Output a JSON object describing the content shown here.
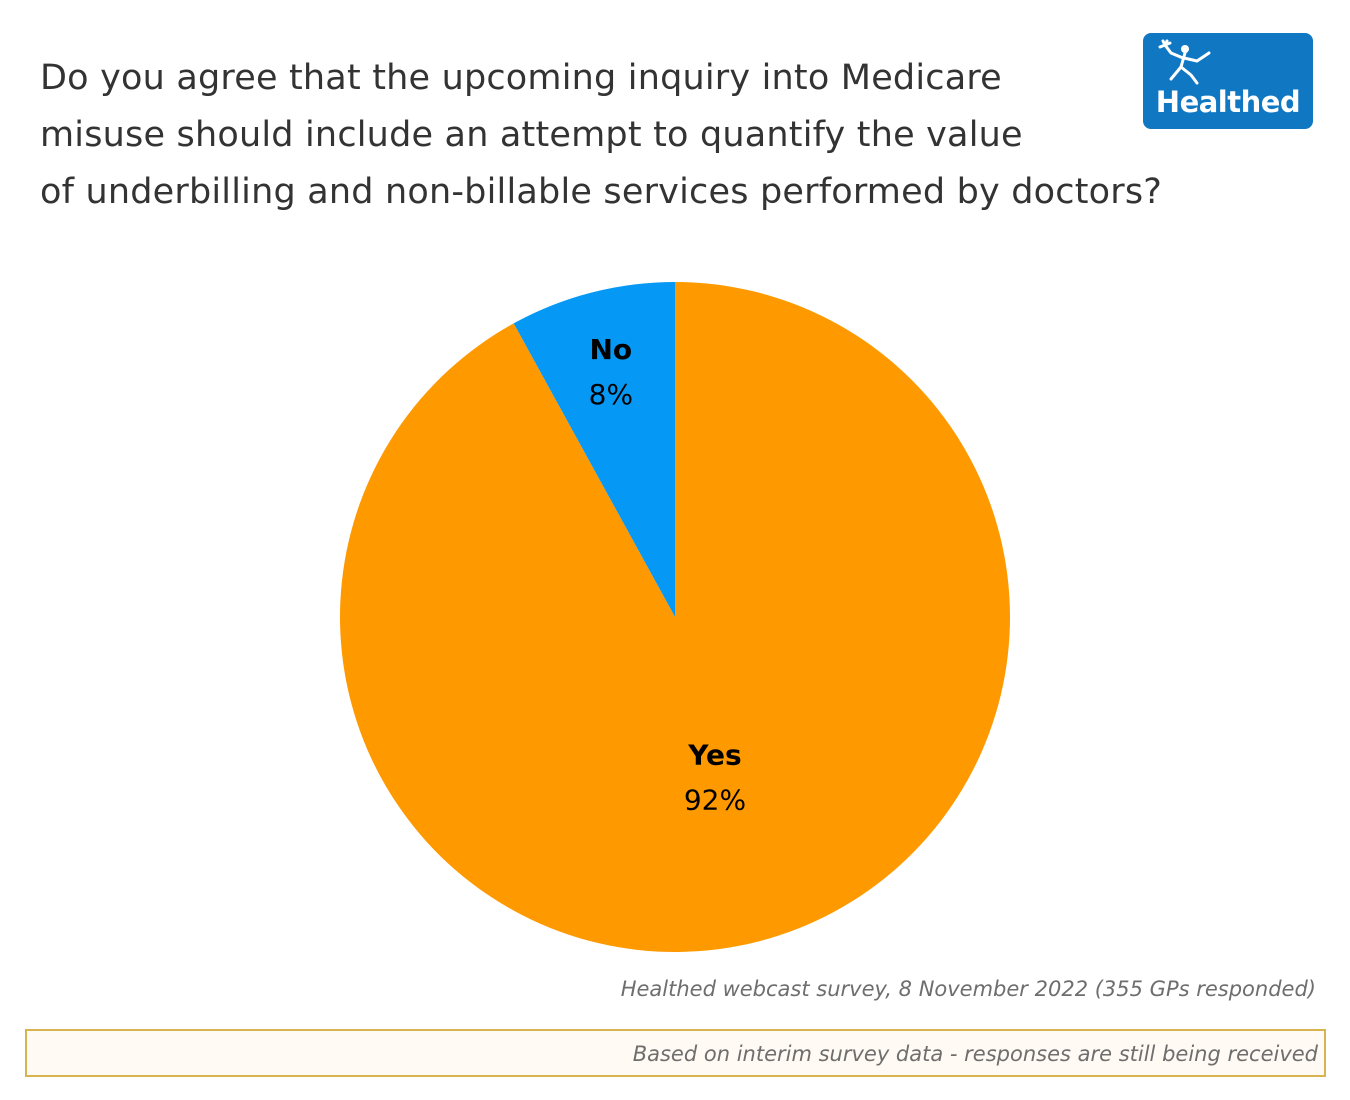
{
  "logo": {
    "text": "Healthed",
    "background_color": "#1078c2",
    "icon": "hermes-figure-icon"
  },
  "chart_data": {
    "type": "pie",
    "title_lines": [
      "Do you agree that the upcoming inquiry into Medicare",
      "misuse should include an attempt to quantify the value",
      "of underbilling and non-billable services performed by doctors?"
    ],
    "slices": [
      {
        "label": "No",
        "value": 8,
        "value_label": "8%",
        "color": "#0599f5"
      },
      {
        "label": "Yes",
        "value": 92,
        "value_label": "92%",
        "color": "#fe9900"
      }
    ],
    "start_angle": "12 o'clock, counter-clockwise for first slice"
  },
  "footer": {
    "source": "Healthed webcast survey, 8 November 2022 (355 GPs responded)",
    "note": "Based on interim survey data - responses are still being received"
  }
}
